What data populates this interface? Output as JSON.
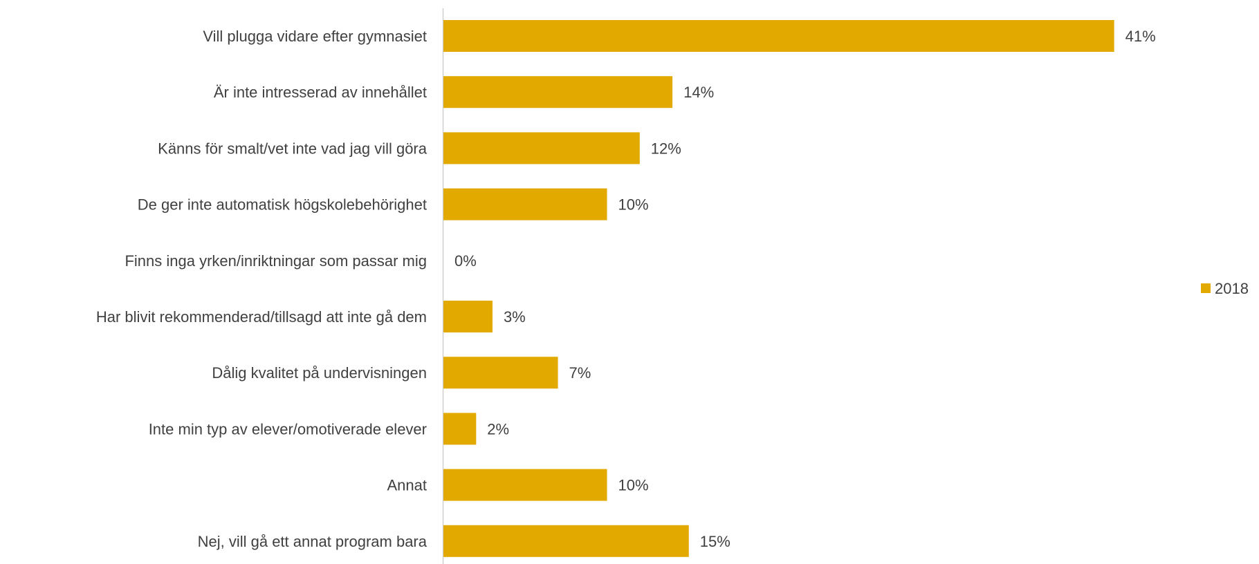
{
  "chart_data": {
    "type": "bar",
    "orientation": "horizontal",
    "categories": [
      "Vill plugga vidare efter gymnasiet",
      "Är inte intresserad av innehållet",
      "Känns för smalt/vet inte vad jag vill göra",
      "De ger inte automatisk högskolebehörighet",
      "Finns inga yrken/inriktningar som passar mig",
      "Har blivit rekommenderad/tillsagd att inte gå dem",
      "Dålig kvalitet på undervisningen",
      "Inte min typ av elever/omotiverade elever",
      "Annat",
      "Nej, vill gå ett annat program bara"
    ],
    "series": [
      {
        "name": "2018",
        "values": [
          41,
          14,
          12,
          10,
          0,
          3,
          7,
          2,
          10,
          15
        ],
        "color": "#E2A900"
      }
    ],
    "value_labels": [
      "41%",
      "14%",
      "12%",
      "10%",
      "0%",
      "3%",
      "7%",
      "2%",
      "10%",
      "15%"
    ],
    "unit": "%",
    "xlim": [
      0,
      46
    ],
    "grid": false,
    "legend": {
      "position": "right",
      "entries": [
        "2018"
      ]
    }
  }
}
